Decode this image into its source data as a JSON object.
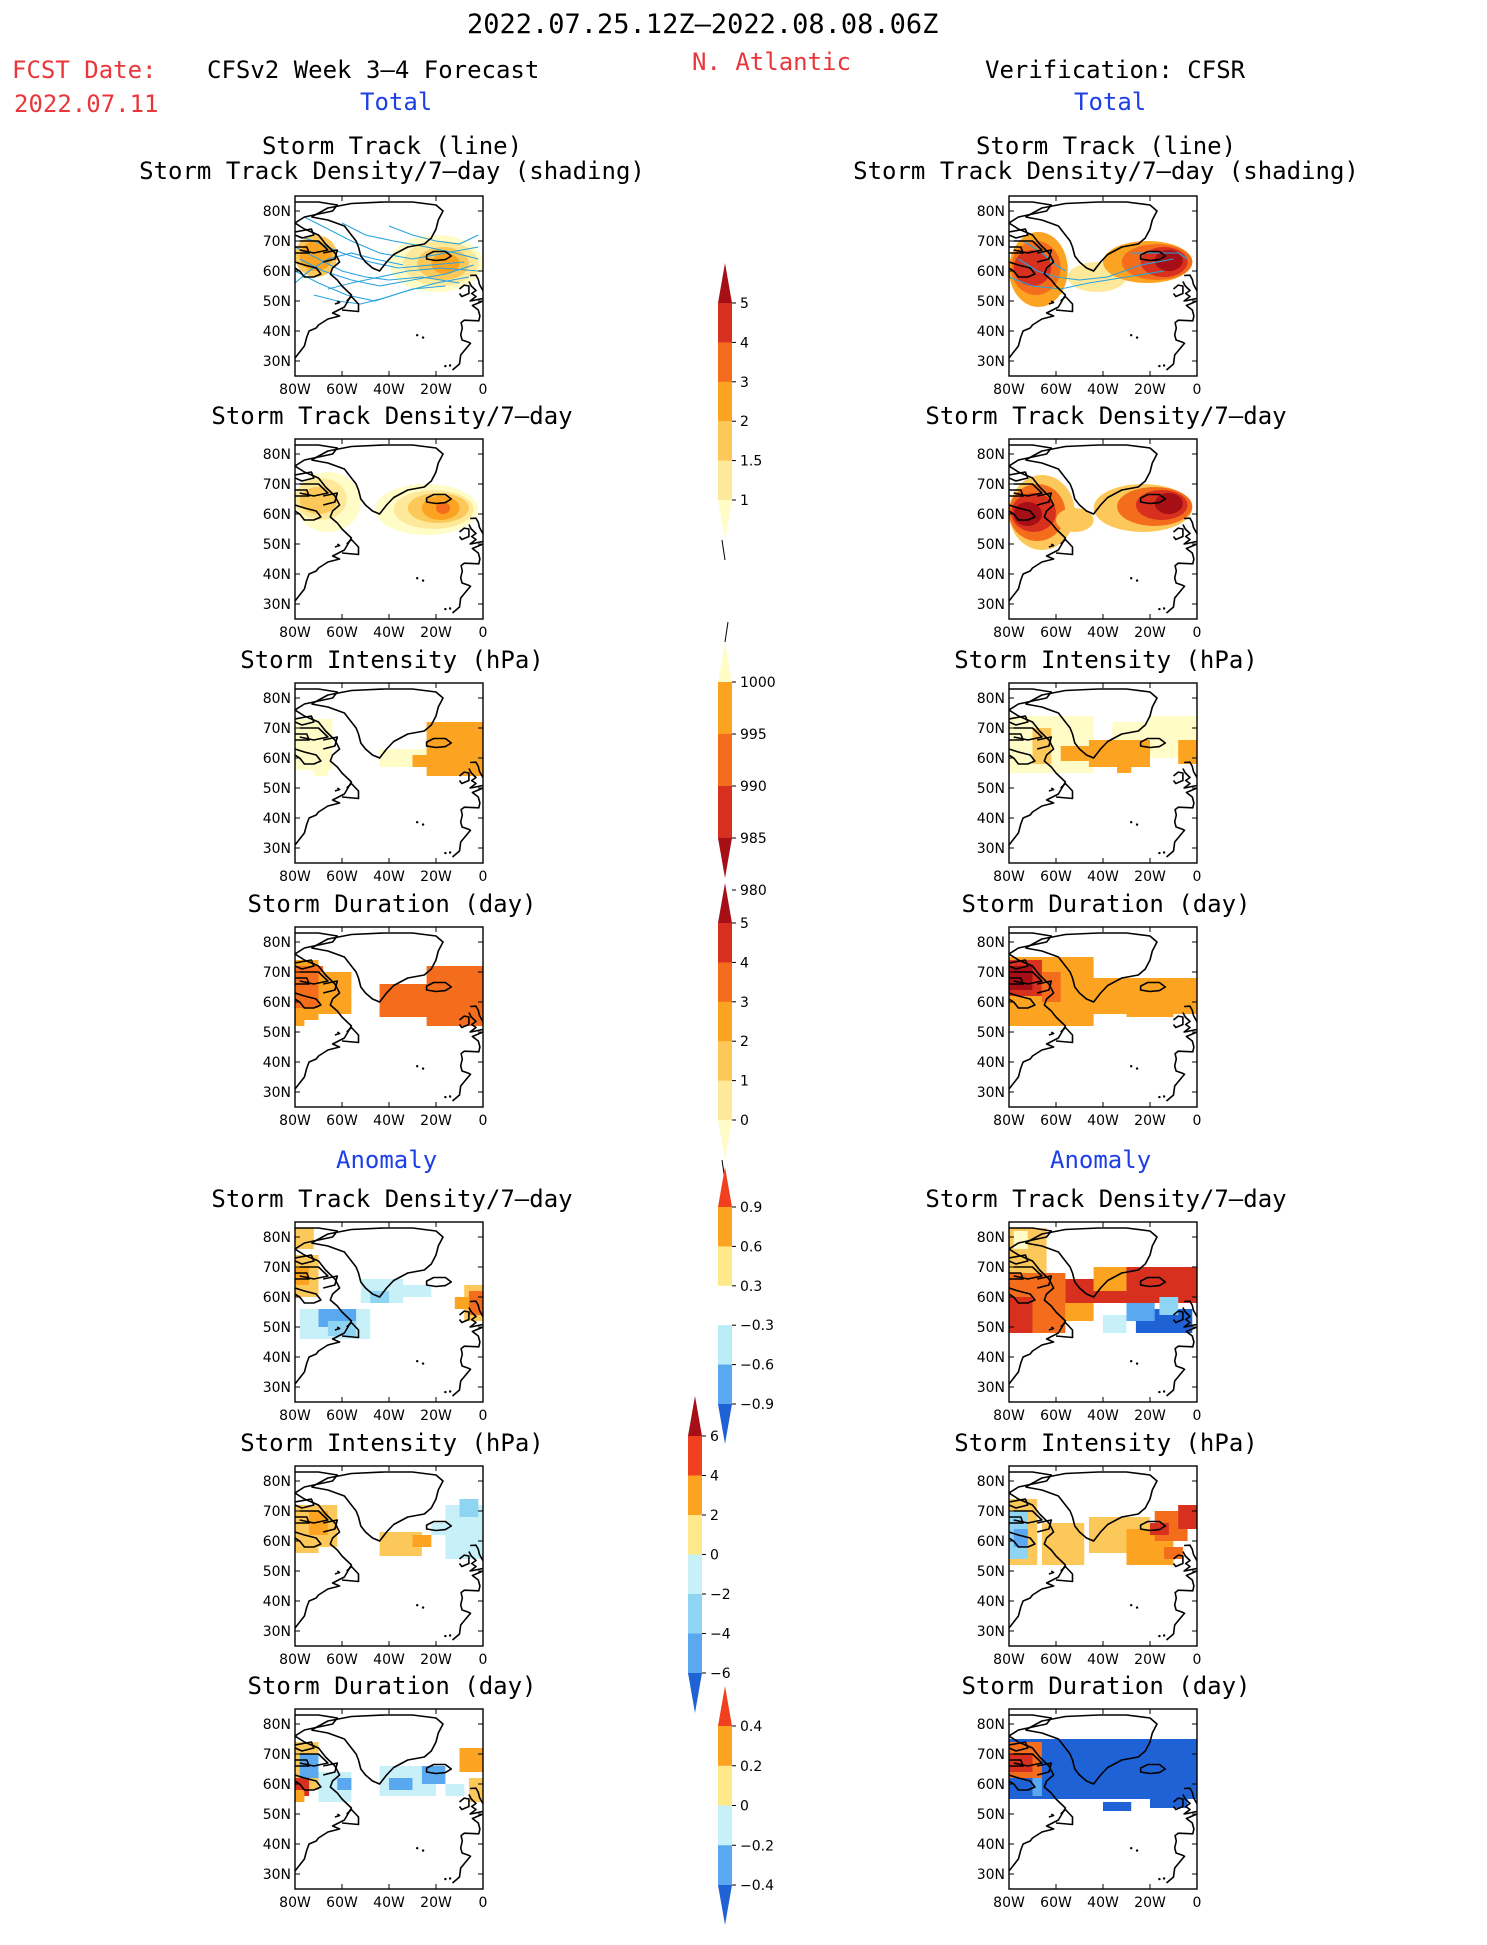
{
  "header": {
    "period": "2022.07.25.12Z–2022.08.08.06Z",
    "fcst_label": "FCST Date:",
    "fcst_date": "2022.07.11",
    "left_title": "CFSv2 Week 3–4 Forecast",
    "region": "N. Atlantic",
    "right_title": "Verification: CFSR"
  },
  "sections": {
    "total_left": "Total",
    "total_right": "Total",
    "anomaly_left": "Anomaly",
    "anomaly_right": "Anomaly"
  },
  "panel_titles": {
    "track_line": "Storm Track (line)",
    "track_shading": "Storm Track Density/7–day (shading)",
    "density": "Storm Track Density/7–day",
    "intensity": "Storm Intensity (hPa)",
    "duration": "Storm Duration (day)"
  },
  "axes": {
    "lat_labels": [
      "80N",
      "70N",
      "60N",
      "50N",
      "40N",
      "30N"
    ],
    "lon_labels": [
      "80W",
      "60W",
      "40W",
      "20W",
      "0"
    ]
  },
  "colorbars": {
    "density": {
      "labels": [
        "5",
        "4",
        "3",
        "2",
        "1.5",
        "1"
      ],
      "colors": [
        "#a50f15",
        "#d7301f",
        "#f46d1d",
        "#fca421",
        "#fdc85a",
        "#fee89a",
        "#fffcc8"
      ]
    },
    "intensity": {
      "labels": [
        "1000",
        "995",
        "990",
        "985",
        "980"
      ],
      "colors": [
        "#fffcc8",
        "#fca421",
        "#f46d1d",
        "#d7301f",
        "#a50f15"
      ]
    },
    "duration": {
      "labels": [
        "5",
        "4",
        "3",
        "2",
        "1",
        "0"
      ],
      "colors": [
        "#a50f15",
        "#d7301f",
        "#f46d1d",
        "#fca421",
        "#fdc85a",
        "#fee89a",
        "#fffcc8"
      ]
    },
    "anom_density": {
      "labels": [
        "0.9",
        "0.6",
        "0.3",
        "−0.3",
        "−0.6",
        "−0.9"
      ],
      "colors": [
        "#f0401e",
        "#fca421",
        "#fee88a",
        "#ffffff",
        "#b9ecf6",
        "#5aa8ef",
        "#1f62d6"
      ]
    },
    "anom_intensity": {
      "labels": [
        "6",
        "4",
        "2",
        "0",
        "−2",
        "−4",
        "−6"
      ],
      "colors": [
        "#a50f15",
        "#f0401e",
        "#fca421",
        "#fee88a",
        "#c7f0f8",
        "#8fd4f2",
        "#5aa8ef",
        "#1f62d6"
      ]
    },
    "anom_duration": {
      "labels": [
        "0.4",
        "0.2",
        "0",
        "−0.2",
        "−0.4"
      ],
      "colors": [
        "#f0401e",
        "#fca421",
        "#fee88a",
        "#c7f0f8",
        "#5aa8ef",
        "#1f62d6"
      ]
    }
  },
  "palette": {
    "c1": "#fffcc8",
    "c2": "#fee89a",
    "c3": "#fdc85a",
    "c4": "#fca421",
    "c5": "#f46d1d",
    "c6": "#d7301f",
    "c7": "#a50f15",
    "b1": "#c7f0f8",
    "b2": "#8fd4f2",
    "b3": "#5aa8ef",
    "b4": "#1f62d6",
    "track": "#29a3e0"
  }
}
